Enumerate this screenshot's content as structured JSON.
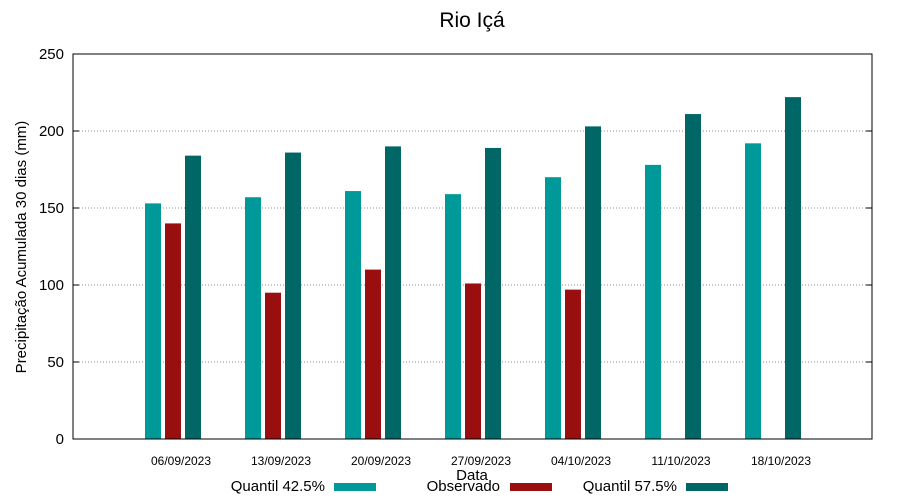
{
  "chart_data": {
    "type": "bar",
    "title": "Rio Içá",
    "xlabel": "Data",
    "ylabel": "Precipitação Acumulada 30 dias (mm)",
    "ylim": [
      0,
      250
    ],
    "yticks": [
      0,
      50,
      100,
      150,
      200,
      250
    ],
    "grid": true,
    "legend_position": "bottom",
    "categories": [
      "06/09/2023",
      "13/09/2023",
      "20/09/2023",
      "27/09/2023",
      "04/10/2023",
      "11/10/2023",
      "18/10/2023"
    ],
    "series": [
      {
        "name": "Quantil 42.5%",
        "color": "#009999",
        "values": [
          153,
          157,
          161,
          159,
          170,
          178,
          192
        ]
      },
      {
        "name": "Observado",
        "color": "#990f0f",
        "values": [
          140,
          95,
          110,
          101,
          97,
          null,
          null
        ]
      },
      {
        "name": "Quantil 57.5%",
        "color": "#006666",
        "values": [
          184,
          186,
          190,
          189,
          203,
          211,
          222
        ]
      }
    ]
  }
}
